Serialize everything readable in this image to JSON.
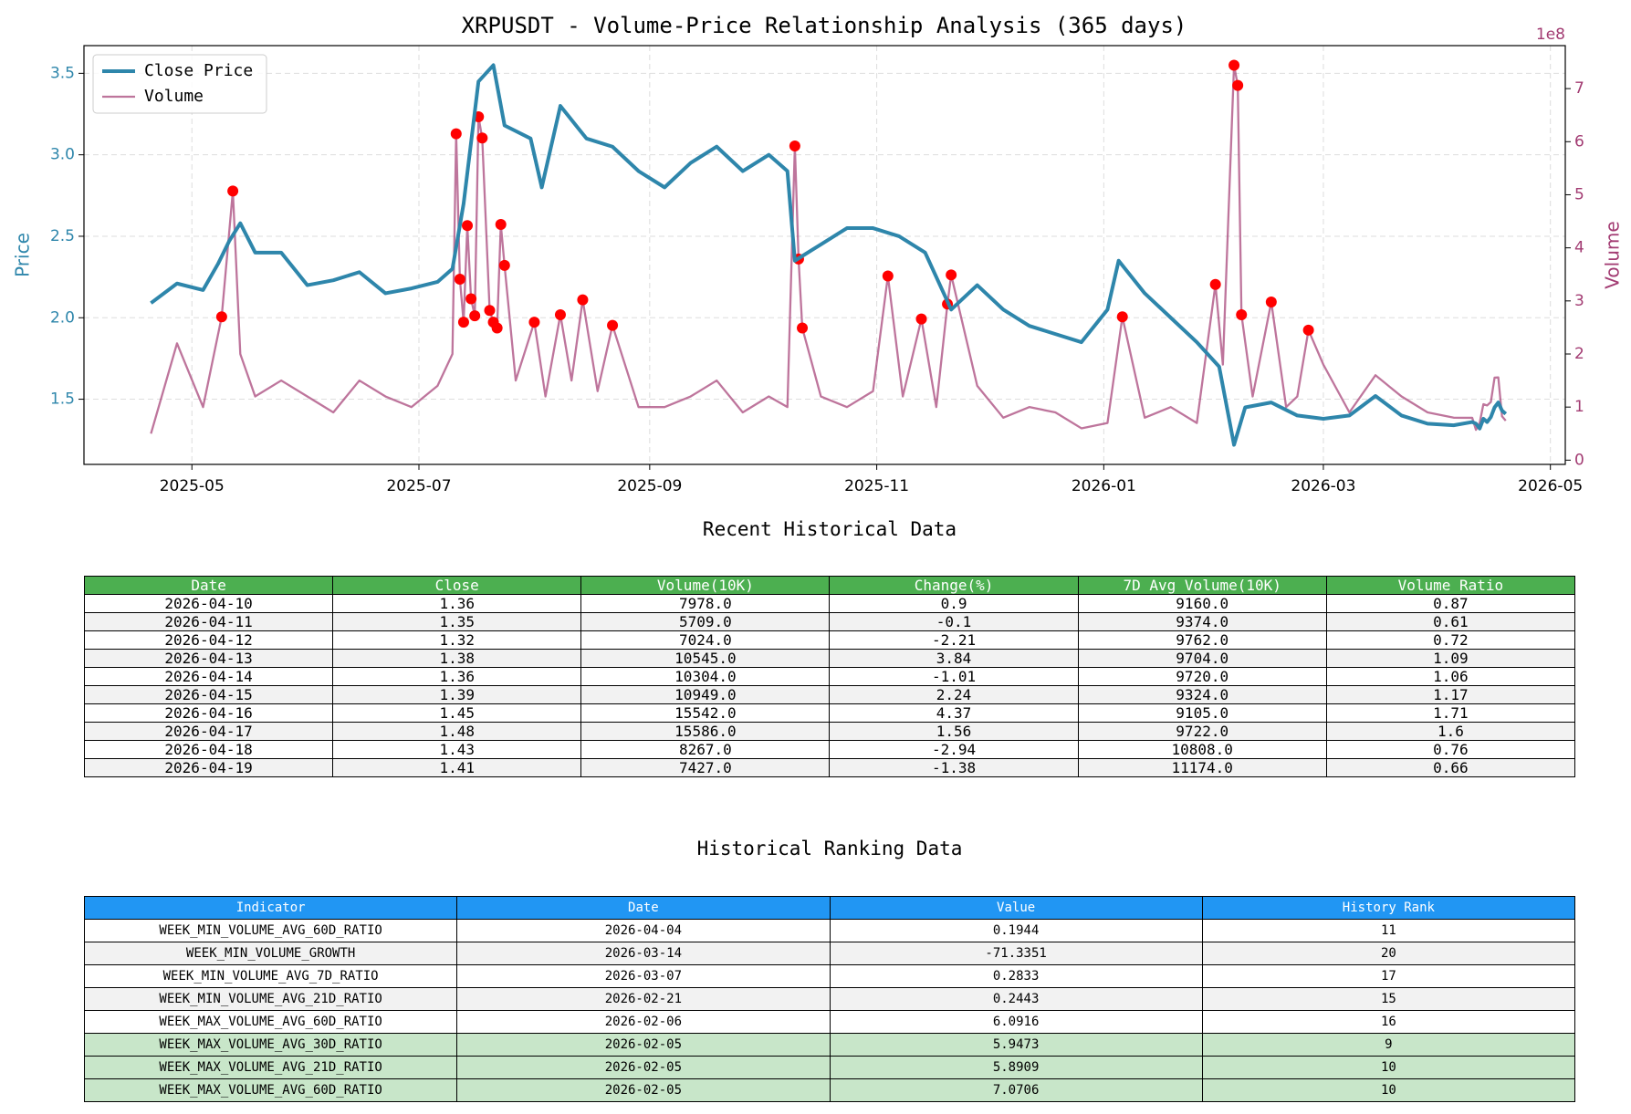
{
  "chart_data": {
    "type": "line",
    "title": "XRPUSDT - Volume-Price Relationship Analysis (365 days)",
    "ylabel": "Price",
    "y2label": "Volume",
    "y2_offset_label": "1e8",
    "xlim": [
      "2025-04-02",
      "2026-05-05"
    ],
    "xticks": [
      "2025-05",
      "2025-07",
      "2025-09",
      "2025-11",
      "2026-01",
      "2026-03",
      "2026-05"
    ],
    "ylim": [
      1.1,
      3.67
    ],
    "yticks": [
      1.5,
      {
        "value": 2,
        "label": "2.0"
      },
      2.5,
      {
        "value": 3,
        "label": "3.0"
      },
      3.5
    ],
    "y2lim": [
      -0.08,
      7.81
    ],
    "y2ticks": [
      0,
      1,
      2,
      3,
      4,
      5,
      6,
      7
    ],
    "grid": true,
    "legend": "upper left",
    "series": [
      {
        "name": "Close Price",
        "color": "#2e86ab",
        "x": [
          "2025-04-20",
          "2025-04-27",
          "2025-05-04",
          "2025-05-08",
          "2025-05-11",
          "2025-05-14",
          "2025-05-18",
          "2025-05-25",
          "2025-06-01",
          "2025-06-08",
          "2025-06-15",
          "2025-06-22",
          "2025-06-29",
          "2025-07-06",
          "2025-07-10",
          "2025-07-13",
          "2025-07-17",
          "2025-07-21",
          "2025-07-24",
          "2025-07-31",
          "2025-08-03",
          "2025-08-08",
          "2025-08-15",
          "2025-08-22",
          "2025-08-29",
          "2025-09-05",
          "2025-09-12",
          "2025-09-19",
          "2025-09-26",
          "2025-10-03",
          "2025-10-08",
          "2025-10-10",
          "2025-10-17",
          "2025-10-24",
          "2025-10-31",
          "2025-11-07",
          "2025-11-14",
          "2025-11-21",
          "2025-11-28",
          "2025-12-05",
          "2025-12-12",
          "2025-12-19",
          "2025-12-26",
          "2026-01-02",
          "2026-01-05",
          "2026-01-12",
          "2026-01-19",
          "2026-01-26",
          "2026-02-01",
          "2026-02-05",
          "2026-02-08",
          "2026-02-15",
          "2026-02-22",
          "2026-03-01",
          "2026-03-08",
          "2026-03-15",
          "2026-03-22",
          "2026-03-29",
          "2026-04-05",
          "2026-04-10",
          "2026-04-11",
          "2026-04-12",
          "2026-04-13",
          "2026-04-14",
          "2026-04-15",
          "2026-04-16",
          "2026-04-17",
          "2026-04-18",
          "2026-04-19"
        ],
        "values": [
          2.09,
          2.21,
          2.17,
          2.33,
          2.47,
          2.58,
          2.4,
          2.4,
          2.2,
          2.23,
          2.28,
          2.15,
          2.18,
          2.22,
          2.3,
          2.7,
          3.45,
          3.55,
          3.18,
          3.1,
          2.8,
          3.3,
          3.1,
          3.05,
          2.9,
          2.8,
          2.95,
          3.05,
          2.9,
          3.0,
          2.9,
          2.35,
          2.45,
          2.55,
          2.55,
          2.5,
          2.4,
          2.05,
          2.2,
          2.05,
          1.95,
          1.9,
          1.85,
          2.05,
          2.35,
          2.15,
          2.0,
          1.85,
          1.7,
          1.22,
          1.45,
          1.48,
          1.4,
          1.38,
          1.4,
          1.52,
          1.4,
          1.35,
          1.34,
          1.36,
          1.35,
          1.32,
          1.38,
          1.36,
          1.39,
          1.45,
          1.48,
          1.43,
          1.41
        ]
      },
      {
        "name": "Volume",
        "color": "#a23b72",
        "axis": "y2",
        "x": [
          "2025-04-20",
          "2025-04-27",
          "2025-05-04",
          "2025-05-09",
          "2025-05-12",
          "2025-05-14",
          "2025-05-18",
          "2025-05-25",
          "2025-06-01",
          "2025-06-08",
          "2025-06-15",
          "2025-06-22",
          "2025-06-29",
          "2025-07-06",
          "2025-07-10",
          "2025-07-11",
          "2025-07-12",
          "2025-07-13",
          "2025-07-14",
          "2025-07-15",
          "2025-07-16",
          "2025-07-17",
          "2025-07-18",
          "2025-07-20",
          "2025-07-21",
          "2025-07-22",
          "2025-07-23",
          "2025-07-24",
          "2025-07-27",
          "2025-08-01",
          "2025-08-04",
          "2025-08-08",
          "2025-08-11",
          "2025-08-14",
          "2025-08-18",
          "2025-08-22",
          "2025-08-29",
          "2025-09-05",
          "2025-09-12",
          "2025-09-19",
          "2025-09-26",
          "2025-10-03",
          "2025-10-08",
          "2025-10-10",
          "2025-10-11",
          "2025-10-12",
          "2025-10-17",
          "2025-10-24",
          "2025-10-31",
          "2025-11-04",
          "2025-11-08",
          "2025-11-13",
          "2025-11-17",
          "2025-11-20",
          "2025-11-21",
          "2025-11-28",
          "2025-12-05",
          "2025-12-12",
          "2025-12-19",
          "2025-12-26",
          "2026-01-02",
          "2026-01-06",
          "2026-01-12",
          "2026-01-19",
          "2026-01-26",
          "2026-01-31",
          "2026-02-02",
          "2026-02-05",
          "2026-02-06",
          "2026-02-07",
          "2026-02-10",
          "2026-02-15",
          "2026-02-19",
          "2026-02-22",
          "2026-02-25",
          "2026-03-01",
          "2026-03-08",
          "2026-03-15",
          "2026-03-22",
          "2026-03-29",
          "2026-04-05",
          "2026-04-10",
          "2026-04-11",
          "2026-04-12",
          "2026-04-13",
          "2026-04-14",
          "2026-04-15",
          "2026-04-16",
          "2026-04-17",
          "2026-04-18",
          "2026-04-19"
        ],
        "values": [
          0.5,
          2.2,
          1.0,
          2.7,
          5.07,
          2.0,
          1.2,
          1.5,
          1.2,
          0.9,
          1.5,
          1.2,
          1.0,
          1.4,
          2.0,
          6.15,
          3.41,
          2.6,
          4.42,
          3.04,
          2.72,
          6.47,
          6.07,
          2.82,
          2.6,
          2.49,
          4.44,
          3.67,
          1.5,
          2.6,
          1.2,
          2.74,
          1.5,
          3.02,
          1.3,
          2.54,
          1.0,
          1.0,
          1.2,
          1.5,
          0.9,
          1.2,
          1.0,
          5.92,
          3.79,
          2.49,
          1.2,
          1.0,
          1.3,
          3.47,
          1.2,
          2.66,
          1.0,
          2.94,
          3.49,
          1.4,
          0.8,
          1.0,
          0.9,
          0.6,
          0.7,
          2.7,
          0.8,
          1.0,
          0.7,
          3.31,
          1.8,
          7.44,
          7.06,
          2.74,
          1.2,
          2.98,
          1.0,
          1.2,
          2.45,
          1.8,
          0.9,
          1.6,
          1.2,
          0.9,
          0.8,
          0.7978,
          0.5709,
          0.7024,
          1.0545,
          1.0304,
          1.0949,
          1.5542,
          1.5586,
          0.8267,
          0.7427
        ],
        "markers": {
          "color": "#ff0000",
          "x": [
            "2025-05-09",
            "2025-05-12",
            "2025-07-11",
            "2025-07-12",
            "2025-07-13",
            "2025-07-14",
            "2025-07-15",
            "2025-07-16",
            "2025-07-17",
            "2025-07-18",
            "2025-07-20",
            "2025-07-21",
            "2025-07-22",
            "2025-07-23",
            "2025-07-24",
            "2025-08-01",
            "2025-08-08",
            "2025-08-14",
            "2025-08-22",
            "2025-10-10",
            "2025-10-11",
            "2025-10-12",
            "2025-11-04",
            "2025-11-13",
            "2025-11-20",
            "2025-11-21",
            "2026-01-06",
            "2026-01-31",
            "2026-02-05",
            "2026-02-06",
            "2026-02-07",
            "2026-02-15",
            "2026-02-25"
          ],
          "values": [
            2.7,
            5.07,
            6.15,
            3.41,
            2.6,
            4.42,
            3.04,
            2.72,
            6.47,
            6.07,
            2.82,
            2.6,
            2.49,
            4.44,
            3.67,
            2.6,
            2.74,
            3.02,
            2.54,
            5.92,
            3.79,
            2.49,
            3.47,
            2.66,
            2.94,
            3.49,
            2.7,
            3.31,
            7.44,
            7.06,
            2.74,
            2.98,
            2.45
          ]
        }
      }
    ]
  },
  "tables": [
    {
      "title": "Recent Historical Data",
      "header_color": "#4caf50",
      "row_colors": [
        "#ffffff",
        "#f2f2f2"
      ],
      "columns": [
        "Date",
        "Close",
        "Volume(10K)",
        "Change(%)",
        "7D Avg Volume(10K)",
        "Volume Ratio"
      ],
      "rows": [
        [
          "2026-04-10",
          "1.36",
          "7978.0",
          "0.9",
          "9160.0",
          "0.87"
        ],
        [
          "2026-04-11",
          "1.35",
          "5709.0",
          "-0.1",
          "9374.0",
          "0.61"
        ],
        [
          "2026-04-12",
          "1.32",
          "7024.0",
          "-2.21",
          "9762.0",
          "0.72"
        ],
        [
          "2026-04-13",
          "1.38",
          "10545.0",
          "3.84",
          "9704.0",
          "1.09"
        ],
        [
          "2026-04-14",
          "1.36",
          "10304.0",
          "-1.01",
          "9720.0",
          "1.06"
        ],
        [
          "2026-04-15",
          "1.39",
          "10949.0",
          "2.24",
          "9324.0",
          "1.17"
        ],
        [
          "2026-04-16",
          "1.45",
          "15542.0",
          "4.37",
          "9105.0",
          "1.71"
        ],
        [
          "2026-04-17",
          "1.48",
          "15586.0",
          "1.56",
          "9722.0",
          "1.6"
        ],
        [
          "2026-04-18",
          "1.43",
          "8267.0",
          "-2.94",
          "10808.0",
          "0.76"
        ],
        [
          "2026-04-19",
          "1.41",
          "7427.0",
          "-1.38",
          "11174.0",
          "0.66"
        ]
      ]
    },
    {
      "title": "Historical Ranking Data",
      "header_color": "#2196f3",
      "row_colors": [
        "#ffffff",
        "#f2f2f2"
      ],
      "highlight_color": "#c8e6c9",
      "highlight_rows": [
        5,
        6,
        7
      ],
      "columns": [
        "Indicator",
        "Date",
        "Value",
        "History Rank"
      ],
      "rows": [
        [
          "WEEK_MIN_VOLUME_AVG_60D_RATIO",
          "2026-04-04",
          "0.1944",
          "11"
        ],
        [
          "WEEK_MIN_VOLUME_GROWTH",
          "2026-03-14",
          "-71.3351",
          "20"
        ],
        [
          "WEEK_MIN_VOLUME_AVG_7D_RATIO",
          "2026-03-07",
          "0.2833",
          "17"
        ],
        [
          "WEEK_MIN_VOLUME_AVG_21D_RATIO",
          "2026-02-21",
          "0.2443",
          "15"
        ],
        [
          "WEEK_MAX_VOLUME_AVG_60D_RATIO",
          "2026-02-06",
          "6.0916",
          "16"
        ],
        [
          "WEEK_MAX_VOLUME_AVG_30D_RATIO",
          "2026-02-05",
          "5.9473",
          "9"
        ],
        [
          "WEEK_MAX_VOLUME_AVG_21D_RATIO",
          "2026-02-05",
          "5.8909",
          "10"
        ],
        [
          "WEEK_MAX_VOLUME_AVG_60D_RATIO",
          "2026-02-05",
          "7.0706",
          "10"
        ]
      ]
    }
  ]
}
